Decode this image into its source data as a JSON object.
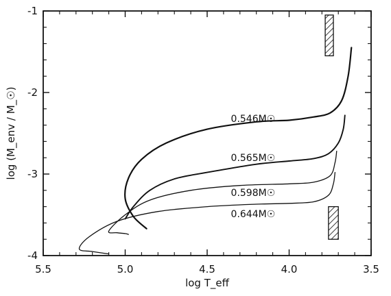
{
  "chart_data": {
    "type": "line",
    "title": "",
    "xlabel": "log T_eff",
    "ylabel": "log (M_env / M_☉)",
    "xlim": [
      5.5,
      3.5
    ],
    "ylim": [
      -4,
      -1
    ],
    "x_ticks": [
      "5.5",
      "5.0",
      "4.5",
      "4.0",
      "3.5"
    ],
    "y_ticks": [
      "-1",
      "-2",
      "-3",
      "-4"
    ],
    "grid": false,
    "legend": "none",
    "series": [
      {
        "name": "0.546M☉",
        "x": [
          4.87,
          4.95,
          5.0,
          4.98,
          4.9,
          4.75,
          4.5,
          4.2,
          4.0,
          3.85,
          3.75,
          3.68,
          3.64,
          3.62
        ],
        "y": [
          -3.67,
          -3.52,
          -3.3,
          -3.05,
          -2.82,
          -2.62,
          -2.45,
          -2.36,
          -2.34,
          -2.3,
          -2.25,
          -2.1,
          -1.8,
          -1.45
        ]
      },
      {
        "name": "0.565M☉",
        "x": [
          5.0,
          4.95,
          4.85,
          4.7,
          4.5,
          4.2,
          4.0,
          3.85,
          3.76,
          3.7,
          3.67,
          3.66
        ],
        "y": [
          -3.55,
          -3.4,
          -3.2,
          -3.06,
          -2.98,
          -2.88,
          -2.84,
          -2.81,
          -2.75,
          -2.62,
          -2.45,
          -2.28
        ]
      },
      {
        "name": "0.598M☉",
        "x": [
          4.98,
          5.0,
          5.05,
          5.1,
          5.0,
          4.85,
          4.6,
          4.3,
          4.0,
          3.85,
          3.75,
          3.72,
          3.71
        ],
        "y": [
          -3.74,
          -3.73,
          -3.72,
          -3.7,
          -3.5,
          -3.32,
          -3.2,
          -3.14,
          -3.12,
          -3.1,
          -3.02,
          -2.86,
          -2.72
        ]
      },
      {
        "name": "0.644M☉",
        "x": [
          5.1,
          5.2,
          5.28,
          5.22,
          5.05,
          4.8,
          4.5,
          4.2,
          4.0,
          3.85,
          3.76,
          3.73,
          3.72
        ],
        "y": [
          -3.98,
          -3.95,
          -3.92,
          -3.77,
          -3.58,
          -3.46,
          -3.4,
          -3.37,
          -3.36,
          -3.34,
          -3.26,
          -3.12,
          -2.98
        ]
      }
    ],
    "curve_labels": [
      {
        "text": "0.546M☉",
        "x": 4.22,
        "y": -2.36
      },
      {
        "text": "0.565M☉",
        "x": 4.22,
        "y": -2.84
      },
      {
        "text": "0.598M☉",
        "x": 4.22,
        "y": -3.27
      },
      {
        "text": "0.644M☉",
        "x": 4.22,
        "y": -3.53
      }
    ],
    "hatched_regions": [
      {
        "x": [
          3.78,
          3.73
        ],
        "y": [
          -1.05,
          -1.55
        ]
      },
      {
        "x": [
          3.76,
          3.7
        ],
        "y": [
          -3.4,
          -3.8
        ]
      }
    ]
  }
}
